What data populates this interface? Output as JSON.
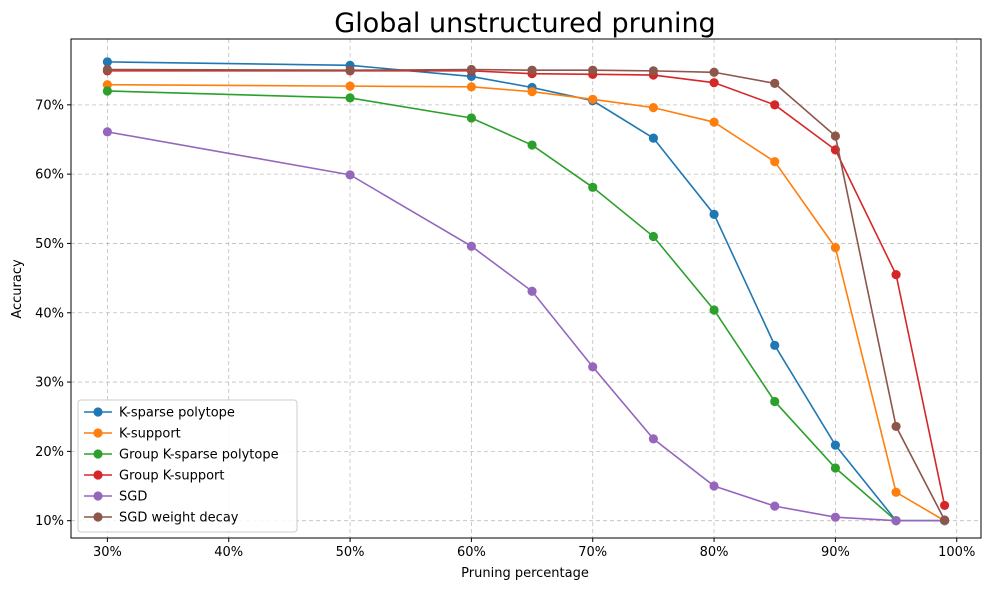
{
  "chart_data": {
    "type": "line",
    "title": "Global unstructured pruning",
    "xlabel": "Pruning percentage",
    "ylabel": "Accuracy",
    "xlim": [
      27,
      102
    ],
    "ylim": [
      7.5,
      79.5
    ],
    "xticks": [
      30,
      40,
      50,
      60,
      70,
      80,
      90,
      100
    ],
    "xtick_labels": [
      "30%",
      "40%",
      "50%",
      "60%",
      "70%",
      "80%",
      "90%",
      "100%"
    ],
    "yticks": [
      10,
      20,
      30,
      40,
      50,
      60,
      70
    ],
    "ytick_labels": [
      "10%",
      "20%",
      "30%",
      "40%",
      "50%",
      "60%",
      "70%"
    ],
    "grid": true,
    "legend_position": "lower-left",
    "x": [
      30,
      50,
      60,
      65,
      70,
      75,
      80,
      85,
      90,
      95,
      99
    ],
    "series": [
      {
        "name": "K-sparse polytope",
        "color": "#1f77b4",
        "values": [
          76.2,
          75.7,
          74.1,
          72.5,
          70.6,
          65.2,
          54.2,
          35.3,
          20.9,
          10.0,
          10.0
        ]
      },
      {
        "name": "K-support",
        "color": "#ff7f0e",
        "values": [
          72.9,
          72.7,
          72.6,
          71.9,
          70.8,
          69.6,
          67.5,
          61.8,
          49.4,
          14.1,
          10.0
        ]
      },
      {
        "name": "Group K-sparse polytope",
        "color": "#2ca02c",
        "values": [
          72.0,
          71.0,
          68.1,
          64.2,
          58.1,
          51.0,
          40.4,
          27.2,
          17.6,
          10.0,
          10.0
        ]
      },
      {
        "name": "Group K-support",
        "color": "#d62728",
        "values": [
          74.9,
          74.9,
          74.9,
          74.5,
          74.4,
          74.3,
          73.2,
          70.0,
          63.5,
          45.5,
          12.2
        ]
      },
      {
        "name": "SGD",
        "color": "#9467bd",
        "values": [
          66.1,
          59.9,
          49.6,
          43.1,
          32.2,
          21.8,
          15.0,
          12.1,
          10.5,
          10.0,
          10.0
        ]
      },
      {
        "name": "SGD weight decay",
        "color": "#8c564b",
        "values": [
          75.1,
          75.0,
          75.1,
          75.0,
          75.0,
          74.9,
          74.7,
          73.1,
          65.5,
          23.6,
          10.1
        ]
      }
    ]
  }
}
